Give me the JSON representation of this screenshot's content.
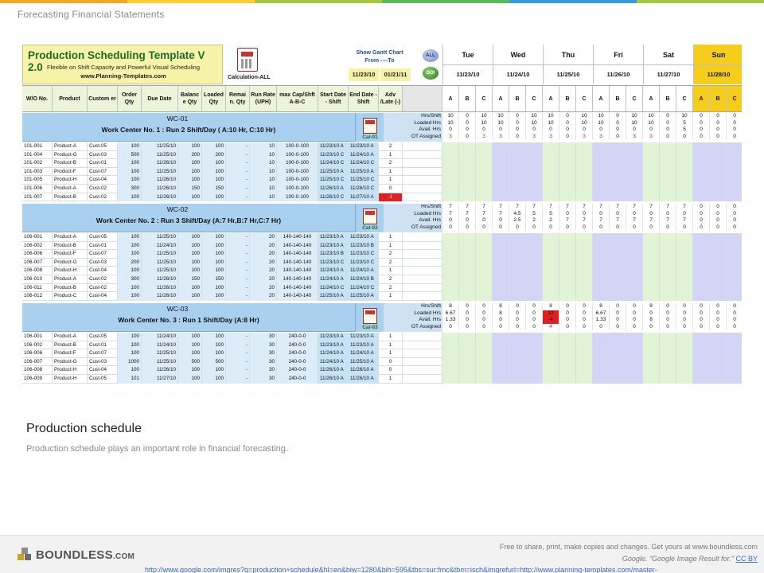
{
  "header": {
    "title": "Forecasting Financial Statements",
    "stripe_colors": [
      "#f5a623",
      "#ffcc33",
      "#a3c83c",
      "#5cb85c",
      "#3a9ad9",
      "#a3c83c"
    ]
  },
  "sheet": {
    "banner": {
      "title": "Production Scheduling Template V 2.0",
      "subtitle": "Flexible on Shift Capacity and Powerful Visual Scheduling",
      "url": "www.Planning-Templates.com"
    },
    "calc_label": "Calculation-ALL",
    "gantt_label": "Show Gantt Chart From ----To",
    "from_date": "11/23/10",
    "to_date": "01/21/11",
    "btn_all": "ALL",
    "btn_go": "GO!",
    "days": [
      {
        "name": "Tue",
        "date": "11/23/10"
      },
      {
        "name": "Wed",
        "date": "11/24/10"
      },
      {
        "name": "Thu",
        "date": "11/25/10"
      },
      {
        "name": "Fri",
        "date": "11/26/10"
      },
      {
        "name": "Sat",
        "date": "11/27/10"
      },
      {
        "name": "Sun",
        "date": "11/28/10"
      }
    ],
    "columns": [
      "W/O No.",
      "Product",
      "Custom er",
      "Order Qty",
      "Due Date",
      "Balanc e Qty",
      "Loaded Qty",
      "Remai n. Qty",
      "Run Rate (UPH)",
      "max Cap/Shft A-B-C",
      "Start Date - Shift",
      "End Date - Shift",
      "Adv /Late (-)"
    ],
    "shift_letters": [
      "A",
      "B",
      "C"
    ],
    "metric_labels": [
      "Hrs/Shift",
      "Loaded Hrs",
      "Avail. Hrs",
      "OT Assigned"
    ],
    "work_centers": [
      {
        "code": "WC-01",
        "desc": "Work Center No. 1 : Run 2 Shift/Day ( A:10 Hr, C:10 Hr)",
        "cal": "Cal-01",
        "metrics": [
          [
            "10",
            "0",
            "10",
            "10",
            "0",
            "10",
            "10",
            "0",
            "10",
            "10",
            "0",
            "10",
            "10",
            "0",
            "10",
            "0",
            "0",
            "0"
          ],
          [
            "10",
            "0",
            "10",
            "10",
            "0",
            "10",
            "10",
            "0",
            "10",
            "10",
            "0",
            "10",
            "10",
            "0",
            "5",
            "0",
            "0",
            "0"
          ],
          [
            "0",
            "0",
            "0",
            "0",
            "0",
            "0",
            "0",
            "0",
            "0",
            "0",
            "0",
            "0",
            "0",
            "0",
            "5",
            "0",
            "0",
            "0"
          ],
          [
            "3",
            "0",
            "3",
            "3",
            "0",
            "3",
            "3",
            "0",
            "3",
            "3",
            "0",
            "3",
            "3",
            "0",
            "0",
            "0",
            "0",
            "0"
          ]
        ],
        "orders": [
          [
            "101-001",
            "Product-A",
            "Cust-05",
            "100",
            "11/25/10",
            "100",
            "100",
            "-",
            "10",
            "100-0-100",
            "11/23/10 A",
            "11/23/10 A",
            "2"
          ],
          [
            "101-004",
            "Product-G",
            "Cust-03",
            "500",
            "11/25/10",
            "200",
            "200",
            "-",
            "10",
            "100-0-100",
            "11/23/10 C",
            "11/24/10 A",
            "1"
          ],
          [
            "101-002",
            "Product-B",
            "Cust-01",
            "100",
            "11/26/10",
            "100",
            "100",
            "-",
            "10",
            "100-0-100",
            "11/24/10 C",
            "11/24/10 C",
            "2"
          ],
          [
            "101-003",
            "Product-F",
            "Cust-07",
            "100",
            "11/25/10",
            "100",
            "100",
            "-",
            "10",
            "100-0-100",
            "11/25/10 A",
            "11/25/10 A",
            "1"
          ],
          [
            "101-005",
            "Product-H",
            "Cust-04",
            "100",
            "11/26/10",
            "100",
            "100",
            "-",
            "10",
            "100-0-100",
            "11/25/10 C",
            "11/25/10 C",
            "1"
          ],
          [
            "101-006",
            "Product-A",
            "Cust-02",
            "300",
            "11/26/10",
            "150",
            "150",
            "-",
            "10",
            "100-0-100",
            "11/26/10 A",
            "11/26/10 C",
            "0"
          ],
          [
            "101-007",
            "Product-B",
            "Cust-02",
            "100",
            "11/26/10",
            "100",
            "100",
            "-",
            "10",
            "100-0-100",
            "11/26/10 C",
            "11/27/10 A",
            "-1"
          ]
        ],
        "gantt": [
          {
            "col": 0,
            "v": "100"
          },
          {
            "col": 4,
            "v": "100"
          },
          {
            "col": 5,
            "v": "100"
          },
          {
            "col": 8,
            "v": "100"
          },
          {
            "col": 9,
            "v": "100"
          },
          {
            "col": 11,
            "v": "100"
          },
          {
            "col": 12,
            "v": "100"
          },
          {
            "col": 13,
            "v": "50"
          },
          {
            "col": 13,
            "v": "50"
          },
          {
            "col": 14,
            "v": "50"
          }
        ]
      },
      {
        "code": "WC-02",
        "desc": "Work Center No. 2 : Run 3 Shift/Day (A:7 Hr,B:7 Hr,C:7 Hr)",
        "cal": "Cal-02",
        "metrics": [
          [
            "7",
            "7",
            "7",
            "7",
            "7",
            "7",
            "7",
            "7",
            "7",
            "7",
            "7",
            "7",
            "7",
            "7",
            "7",
            "0",
            "0",
            "0"
          ],
          [
            "7",
            "7",
            "7",
            "7",
            "4.5",
            "5",
            "5",
            "0",
            "0",
            "0",
            "0",
            "0",
            "0",
            "0",
            "0",
            "0",
            "0",
            "0"
          ],
          [
            "0",
            "0",
            "0",
            "0",
            "2.5",
            "2",
            "2",
            "7",
            "7",
            "7",
            "7",
            "7",
            "7",
            "7",
            "7",
            "0",
            "0",
            "0"
          ],
          [
            "0",
            "0",
            "0",
            "0",
            "0",
            "0",
            "0",
            "0",
            "0",
            "0",
            "0",
            "0",
            "0",
            "0",
            "0",
            "0",
            "0",
            "0"
          ]
        ],
        "orders": [
          [
            "106-001",
            "Product-A",
            "Cust-05",
            "100",
            "11/25/10",
            "100",
            "100",
            "-",
            "20",
            "140-140-140",
            "11/23/10 A",
            "11/23/10 A",
            "1"
          ],
          [
            "106-002",
            "Product-B",
            "Cust-01",
            "100",
            "11/24/10",
            "100",
            "100",
            "-",
            "20",
            "140-140-140",
            "11/23/10 A",
            "11/23/10 B",
            "1"
          ],
          [
            "106-006",
            "Product-F",
            "Cust-07",
            "100",
            "11/25/10",
            "100",
            "100",
            "-",
            "20",
            "140-140-140",
            "11/23/10 B",
            "11/23/10 C",
            "2"
          ],
          [
            "106-007",
            "Product-G",
            "Cust-03",
            "200",
            "11/25/10",
            "100",
            "100",
            "-",
            "20",
            "140-140-140",
            "11/23/10 C",
            "11/23/10 C",
            "2"
          ],
          [
            "106-008",
            "Product-H",
            "Cust-04",
            "100",
            "11/25/10",
            "100",
            "100",
            "-",
            "20",
            "140-140-140",
            "11/24/10 A",
            "11/24/10 A",
            "1"
          ],
          [
            "106-010",
            "Product-A",
            "Cust-02",
            "300",
            "11/26/10",
            "150",
            "150",
            "-",
            "20",
            "140-140-140",
            "11/24/10 A",
            "11/24/10 B",
            "2"
          ],
          [
            "106-011",
            "Product-B",
            "Cust-02",
            "100",
            "11/26/10",
            "100",
            "100",
            "-",
            "20",
            "140-140-140",
            "11/24/10 C",
            "11/24/10 C",
            "2"
          ],
          [
            "106-012",
            "Product-C",
            "Cust-04",
            "100",
            "11/26/10",
            "100",
            "100",
            "-",
            "20",
            "140-140-140",
            "11/25/10 A",
            "11/25/10 A",
            "1"
          ]
        ]
      },
      {
        "code": "WC-03",
        "desc": "Work Center No. 3 : Run 1 Shift/Day (A:8 Hr)",
        "cal": "Cal-03",
        "metrics": [
          [
            "8",
            "0",
            "0",
            "8",
            "0",
            "0",
            "8",
            "0",
            "0",
            "8",
            "0",
            "0",
            "8",
            "0",
            "0",
            "0",
            "0",
            "0"
          ],
          [
            "6.67",
            "0",
            "0",
            "8",
            "0",
            "0",
            "12",
            "0",
            "0",
            "6.67",
            "0",
            "0",
            "0",
            "0",
            "0",
            "0",
            "0",
            "0"
          ],
          [
            "1.33",
            "0",
            "0",
            "0",
            "0",
            "0",
            "-4",
            "0",
            "0",
            "1.33",
            "0",
            "0",
            "8",
            "0",
            "0",
            "0",
            "0",
            "0"
          ],
          [
            "0",
            "0",
            "0",
            "0",
            "0",
            "0",
            "4",
            "0",
            "0",
            "0",
            "0",
            "0",
            "0",
            "0",
            "0",
            "0",
            "0",
            "0"
          ]
        ],
        "orders": [
          [
            "106-001",
            "Product-A",
            "Cust-05",
            "100",
            "11/24/10",
            "100",
            "100",
            "-",
            "30",
            "240-0-0",
            "11/23/10 A",
            "11/23/10 A",
            "1"
          ],
          [
            "106-002",
            "Product-B",
            "Cust-01",
            "100",
            "11/24/10",
            "100",
            "100",
            "-",
            "30",
            "240-0-0",
            "11/23/10 A",
            "11/23/10 A",
            "1"
          ],
          [
            "106-006",
            "Product-F",
            "Cust-07",
            "100",
            "11/25/10",
            "100",
            "100",
            "-",
            "30",
            "240-0-0",
            "11/24/10 A",
            "11/24/10 A",
            "1"
          ],
          [
            "106-007",
            "Product-G",
            "Cust-03",
            "1000",
            "11/25/10",
            "500",
            "500",
            "-",
            "30",
            "240-0-0",
            "11/24/10 A",
            "11/25/10 A",
            "0"
          ],
          [
            "106-008",
            "Product-H",
            "Cust-04",
            "100",
            "11/26/10",
            "100",
            "100",
            "-",
            "30",
            "240-0-0",
            "11/26/10 A",
            "11/26/10 A",
            "0"
          ],
          [
            "106-009",
            "Product-H",
            "Cust-05",
            "101",
            "11/27/10",
            "100",
            "100",
            "-",
            "30",
            "240-0-0",
            "11/26/10 A",
            "11/26/10 A",
            "1"
          ]
        ]
      }
    ]
  },
  "caption": {
    "title": "Production schedule",
    "text": "Production schedule plays an important role in financial forecasting."
  },
  "footer": {
    "logo": "BOUNDLESS",
    "logo_suffix": ".COM",
    "line1": "Free to share, print, make copies and changes. Get yours at www.boundless.com",
    "line2_prefix": "Google. \"Google Image Result for.\"",
    "line2_link": "CC BY",
    "line3": "http://www.google.com/imgres?q=production+schedule&hl=en&biw=1280&bih=595&tbs=sur:fmc&tbm=isch&imgrefurl=http://www.planning-templates.com/master-"
  }
}
